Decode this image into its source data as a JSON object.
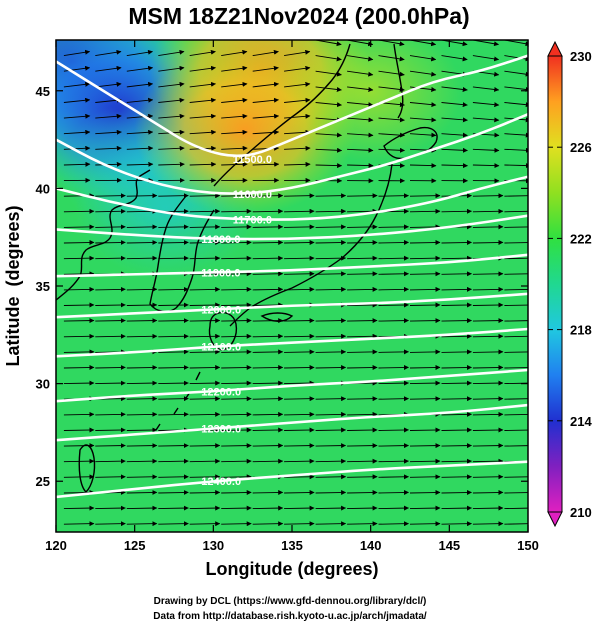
{
  "title": "MSM 18Z21Nov2024 (200.0hPa)",
  "footer": {
    "line1": "Drawing by DCL (https://www.gfd-dennou.org/library/dcl/)",
    "line2": "Data from http://database.rish.kyoto-u.ac.jp/arch/jmadata/"
  },
  "colors": {
    "cold": "#2040e0",
    "mid": "#20d080",
    "warm": "#ffa020",
    "wind_vectors": "#000000",
    "contours": "#ffffff",
    "coastline": "#000000"
  },
  "chart_data": {
    "type": "heatmap",
    "title": "MSM 18Z21Nov2024 (200.0hPa)",
    "xlabel": "Longitude (degrees)",
    "ylabel": "Latitude  (degrees)",
    "xlim": [
      120,
      150
    ],
    "ylim": [
      22.4,
      47.6
    ],
    "x_ticks": [
      120,
      125,
      130,
      135,
      140,
      145,
      150
    ],
    "y_ticks": [
      25,
      30,
      35,
      40,
      45
    ],
    "colorbar": {
      "range": [
        210,
        230
      ],
      "ticks": [
        210,
        214,
        218,
        222,
        226,
        230
      ],
      "stops": [
        {
          "value": 210,
          "color": "#e020c0"
        },
        {
          "value": 212,
          "color": "#8020c0"
        },
        {
          "value": 214,
          "color": "#2030d0"
        },
        {
          "value": 216,
          "color": "#2080f0"
        },
        {
          "value": 218,
          "color": "#20c8e0"
        },
        {
          "value": 220,
          "color": "#20d890"
        },
        {
          "value": 222,
          "color": "#30e040"
        },
        {
          "value": 224,
          "color": "#90e020"
        },
        {
          "value": 226,
          "color": "#e0e020"
        },
        {
          "value": 228,
          "color": "#ffa020"
        },
        {
          "value": 230,
          "color": "#f03020"
        }
      ]
    },
    "shading_field": {
      "description": "temperature",
      "regions": [
        {
          "lon": 121,
          "lat": 46.5,
          "value": 213
        },
        {
          "lon": 124,
          "lat": 44,
          "value": 216
        },
        {
          "lon": 126,
          "lat": 41,
          "value": 218
        },
        {
          "lon": 127,
          "lat": 39,
          "value": 219
        },
        {
          "lon": 133,
          "lat": 46,
          "value": 228
        },
        {
          "lon": 132,
          "lat": 43,
          "value": 227
        },
        {
          "lon": 140,
          "lat": 45,
          "value": 225
        },
        {
          "lon": 135,
          "lat": 38,
          "value": 223
        },
        {
          "lon": 130,
          "lat": 33,
          "value": 221
        },
        {
          "lon": 145,
          "lat": 32,
          "value": 220
        },
        {
          "lon": 137,
          "lat": 27,
          "value": 222
        },
        {
          "lon": 125,
          "lat": 25,
          "value": 223
        }
      ]
    },
    "contours": [
      {
        "label": "11500.0",
        "points": [
          [
            120,
            46.5
          ],
          [
            123,
            45
          ],
          [
            126,
            43.5
          ],
          [
            129,
            42
          ],
          [
            132,
            41.5
          ],
          [
            135,
            42.5
          ],
          [
            138,
            43.5
          ],
          [
            141,
            44.5
          ],
          [
            144,
            45.5
          ],
          [
            147,
            46
          ],
          [
            150,
            46.8
          ]
        ]
      },
      {
        "label": "11600.0",
        "points": [
          [
            120,
            42.5
          ],
          [
            123,
            41.2
          ],
          [
            126,
            40.3
          ],
          [
            129,
            39.8
          ],
          [
            132,
            39.7
          ],
          [
            135,
            40
          ],
          [
            138,
            40.6
          ],
          [
            141,
            41.2
          ],
          [
            144,
            42
          ],
          [
            147,
            42.8
          ],
          [
            150,
            43.8
          ]
        ]
      },
      {
        "label": "11700.0",
        "points": [
          [
            120,
            40
          ],
          [
            124,
            39.2
          ],
          [
            128,
            38.6
          ],
          [
            132,
            38.4
          ],
          [
            136,
            38.4
          ],
          [
            140,
            38.7
          ],
          [
            144,
            39.3
          ],
          [
            147,
            40
          ],
          [
            150,
            40.6
          ]
        ]
      },
      {
        "label": "11800.0",
        "points": [
          [
            120,
            37.9
          ],
          [
            125,
            37.6
          ],
          [
            130,
            37.4
          ],
          [
            135,
            37.4
          ],
          [
            140,
            37.6
          ],
          [
            145,
            38
          ],
          [
            150,
            38.6
          ]
        ]
      },
      {
        "label": "11900.0",
        "points": [
          [
            120,
            35.5
          ],
          [
            125,
            35.6
          ],
          [
            130,
            35.7
          ],
          [
            135,
            35.8
          ],
          [
            140,
            36
          ],
          [
            145,
            36.2
          ],
          [
            150,
            36.6
          ]
        ]
      },
      {
        "label": "12000.0",
        "points": [
          [
            120,
            33.4
          ],
          [
            125,
            33.6
          ],
          [
            130,
            33.8
          ],
          [
            135,
            34
          ],
          [
            140,
            34.1
          ],
          [
            145,
            34.3
          ],
          [
            150,
            34.6
          ]
        ]
      },
      {
        "label": "12100.0",
        "points": [
          [
            120,
            31.4
          ],
          [
            125,
            31.6
          ],
          [
            130,
            31.9
          ],
          [
            135,
            32.1
          ],
          [
            140,
            32.3
          ],
          [
            145,
            32.5
          ],
          [
            150,
            32.8
          ]
        ]
      },
      {
        "label": "12200.0",
        "points": [
          [
            120,
            29.1
          ],
          [
            125,
            29.4
          ],
          [
            130,
            29.6
          ],
          [
            135,
            29.9
          ],
          [
            140,
            30.1
          ],
          [
            145,
            30.4
          ],
          [
            150,
            30.7
          ]
        ]
      },
      {
        "label": "12300.0",
        "points": [
          [
            120,
            27.1
          ],
          [
            125,
            27.4
          ],
          [
            130,
            27.7
          ],
          [
            135,
            28
          ],
          [
            140,
            28.3
          ],
          [
            145,
            28.5
          ],
          [
            150,
            28.9
          ]
        ]
      },
      {
        "label": "12400.0",
        "points": [
          [
            120,
            24.2
          ],
          [
            125,
            24.6
          ],
          [
            130,
            25
          ],
          [
            135,
            25.3
          ],
          [
            140,
            25.6
          ],
          [
            145,
            25.8
          ],
          [
            150,
            26
          ]
        ]
      }
    ],
    "wind_vectors": "dense grid of arrows, predominantly westerly flow"
  }
}
